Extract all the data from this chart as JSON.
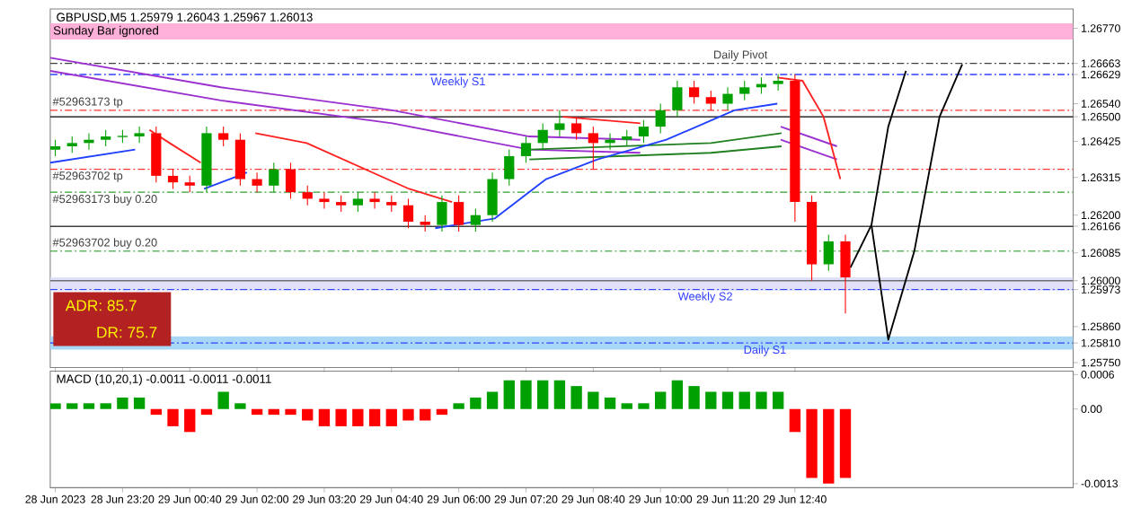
{
  "chart_data": [
    {
      "type": "candlestick",
      "title": "GBPUSD,M5  1.25979 1.26043 1.25967 1.26013",
      "x": [
        "2023-06-28T22:00",
        "2023-06-28T22:20",
        "2023-06-28T22:40",
        "2023-06-28T23:00",
        "2023-06-28T23:20",
        "2023-06-28T23:40",
        "2023-06-29T00:00",
        "2023-06-29T00:20",
        "2023-06-29T00:40",
        "2023-06-29T01:00",
        "2023-06-29T01:20",
        "2023-06-29T01:40",
        "2023-06-29T02:00",
        "2023-06-29T02:20",
        "2023-06-29T02:40",
        "2023-06-29T03:00",
        "2023-06-29T03:20",
        "2023-06-29T03:40",
        "2023-06-29T04:00",
        "2023-06-29T04:20",
        "2023-06-29T04:40",
        "2023-06-29T05:00",
        "2023-06-29T05:20",
        "2023-06-29T05:40",
        "2023-06-29T06:00",
        "2023-06-29T06:20",
        "2023-06-29T06:40",
        "2023-06-29T07:00",
        "2023-06-29T07:20",
        "2023-06-29T07:40",
        "2023-06-29T08:00",
        "2023-06-29T08:20",
        "2023-06-29T08:40",
        "2023-06-29T09:00",
        "2023-06-29T09:20",
        "2023-06-29T09:40",
        "2023-06-29T10:00",
        "2023-06-29T10:20",
        "2023-06-29T10:40",
        "2023-06-29T11:00",
        "2023-06-29T11:20",
        "2023-06-29T11:40",
        "2023-06-29T12:00",
        "2023-06-29T12:20",
        "2023-06-29T12:40",
        "2023-06-29T13:00",
        "2023-06-29T13:20",
        "2023-06-29T13:40"
      ],
      "ohlc": [
        [
          1.264,
          1.2643,
          1.2638,
          1.2641
        ],
        [
          1.2641,
          1.2644,
          1.2639,
          1.2642
        ],
        [
          1.2642,
          1.2645,
          1.264,
          1.2643
        ],
        [
          1.2643,
          1.2646,
          1.2641,
          1.2644
        ],
        [
          1.2644,
          1.2646,
          1.2642,
          1.2644
        ],
        [
          1.2644,
          1.2647,
          1.2642,
          1.2645
        ],
        [
          1.2645,
          1.2647,
          1.263,
          1.2632
        ],
        [
          1.2632,
          1.2634,
          1.2628,
          1.263
        ],
        [
          1.263,
          1.2632,
          1.2627,
          1.2629
        ],
        [
          1.2629,
          1.2647,
          1.2627,
          1.2645
        ],
        [
          1.2645,
          1.2647,
          1.2641,
          1.2643
        ],
        [
          1.2643,
          1.2645,
          1.2629,
          1.2631
        ],
        [
          1.2631,
          1.2633,
          1.2627,
          1.2629
        ],
        [
          1.2629,
          1.2636,
          1.2627,
          1.2634
        ],
        [
          1.2634,
          1.2636,
          1.2625,
          1.2627
        ],
        [
          1.2627,
          1.2629,
          1.2623,
          1.2625
        ],
        [
          1.2625,
          1.2627,
          1.2622,
          1.2624
        ],
        [
          1.2624,
          1.2626,
          1.2621,
          1.2623
        ],
        [
          1.2623,
          1.2627,
          1.2621,
          1.2625
        ],
        [
          1.2625,
          1.2627,
          1.2622,
          1.2624
        ],
        [
          1.2624,
          1.2626,
          1.2621,
          1.2623
        ],
        [
          1.2623,
          1.2625,
          1.2616,
          1.2618
        ],
        [
          1.2618,
          1.262,
          1.2615,
          1.2617
        ],
        [
          1.2617,
          1.2626,
          1.2615,
          1.2624
        ],
        [
          1.2624,
          1.2626,
          1.2615,
          1.2617
        ],
        [
          1.2617,
          1.2622,
          1.2615,
          1.262
        ],
        [
          1.262,
          1.2633,
          1.2618,
          1.2631
        ],
        [
          1.2631,
          1.264,
          1.2629,
          1.2638
        ],
        [
          1.2638,
          1.2644,
          1.2636,
          1.2642
        ],
        [
          1.2642,
          1.2648,
          1.264,
          1.2646
        ],
        [
          1.2646,
          1.2652,
          1.2644,
          1.2648
        ],
        [
          1.2648,
          1.265,
          1.2643,
          1.2645
        ],
        [
          1.2645,
          1.2647,
          1.2634,
          1.2642
        ],
        [
          1.2642,
          1.2645,
          1.264,
          1.2643
        ],
        [
          1.2643,
          1.2646,
          1.2641,
          1.2644
        ],
        [
          1.2644,
          1.2649,
          1.2642,
          1.2647
        ],
        [
          1.2647,
          1.2654,
          1.2645,
          1.2652
        ],
        [
          1.2652,
          1.2661,
          1.265,
          1.2659
        ],
        [
          1.2659,
          1.2661,
          1.2654,
          1.2656
        ],
        [
          1.2656,
          1.2658,
          1.2652,
          1.2654
        ],
        [
          1.2654,
          1.2659,
          1.2652,
          1.2657
        ],
        [
          1.2657,
          1.2661,
          1.2655,
          1.2659
        ],
        [
          1.2659,
          1.2662,
          1.2657,
          1.266
        ],
        [
          1.266,
          1.2663,
          1.2658,
          1.2661
        ],
        [
          1.2661,
          1.2663,
          1.2618,
          1.2624
        ],
        [
          1.2624,
          1.2626,
          1.26,
          1.2605
        ],
        [
          1.2605,
          1.2614,
          1.2603,
          1.2612
        ],
        [
          1.2612,
          1.2614,
          1.259,
          1.2601
        ]
      ],
      "colors": [
        "#00a000",
        "#00a000",
        "#00a000",
        "#00a000",
        "#00a000",
        "#00a000",
        "#ff0000",
        "#ff0000",
        "#ff0000",
        "#00a000",
        "#ff0000",
        "#ff0000",
        "#ff0000",
        "#00a000",
        "#ff0000",
        "#ff0000",
        "#ff0000",
        "#ff0000",
        "#00a000",
        "#ff0000",
        "#ff0000",
        "#ff0000",
        "#ff0000",
        "#00a000",
        "#ff0000",
        "#00a000",
        "#00a000",
        "#00a000",
        "#00a000",
        "#00a000",
        "#00a000",
        "#ff0000",
        "#ff0000",
        "#00a000",
        "#00a000",
        "#00a000",
        "#00a000",
        "#00a000",
        "#ff0000",
        "#ff0000",
        "#00a000",
        "#00a000",
        "#00a000",
        "#00a000",
        "#ff0000",
        "#ff0000",
        "#00a000",
        "#ff0000"
      ],
      "series": [
        {
          "type": "line",
          "color": "#9b30d0",
          "x": [
            "2023-06-28T21:54",
            "2023-06-29T01:17",
            "2023-06-29T04:41",
            "2023-06-29T07:24",
            "2023-06-29T09:36",
            "2023-06-29T11:00",
            "2023-06-29T12:23",
            "2023-06-29T13:30"
          ],
          "values": [
            1.2668,
            1.2659,
            1.2652,
            1.2644,
            1.2643,
            null,
            1.2647,
            1.2641
          ]
        },
        {
          "type": "line",
          "color": "#9b30d0",
          "x": [
            "2023-06-28T21:54",
            "2023-06-29T01:17",
            "2023-06-29T04:41",
            "2023-06-29T07:24",
            "2023-06-29T09:36",
            "2023-06-29T11:00",
            "2023-06-29T12:23",
            "2023-06-29T13:30"
          ],
          "values": [
            1.2664,
            1.2655,
            1.2648,
            1.264,
            1.2639,
            null,
            1.2643,
            1.2637
          ]
        },
        {
          "type": "line",
          "color": "#208020",
          "x": [
            "2023-06-29T07:24",
            "2023-06-29T11:00",
            "2023-06-29T12:24"
          ],
          "values": [
            1.264,
            1.2642,
            1.2645
          ]
        },
        {
          "type": "line",
          "color": "#208020",
          "x": [
            "2023-06-29T07:24",
            "2023-06-29T11:00",
            "2023-06-29T12:24"
          ],
          "values": [
            1.2637,
            1.2639,
            1.2641
          ]
        },
        {
          "type": "line",
          "color": "#ff2020",
          "x": [
            "2023-06-28T23:52",
            "2023-06-29T00:16",
            "2023-06-29T00:53",
            "2023-06-29T01:30",
            "2023-06-29T01:58",
            "2023-06-29T02:59",
            "2023-06-29T04:00",
            "2023-06-29T05:01",
            "2023-06-29T05:52",
            "2023-06-29T07:00",
            "2023-06-29T08:04",
            "2023-06-29T09:36",
            "2023-06-29T11:00",
            "2023-06-29T12:19",
            "2023-06-29T12:49",
            "2023-06-29T13:14",
            "2023-06-29T13:34"
          ],
          "values": [
            1.2646,
            1.2642,
            1.2636,
            null,
            1.2645,
            1.2642,
            1.2635,
            1.2628,
            1.2624,
            null,
            1.265,
            1.2648,
            null,
            1.2662,
            1.2661,
            1.265,
            1.2631
          ]
        },
        {
          "type": "line",
          "color": "#2040ff",
          "x": [
            "2023-06-28T21:54",
            "2023-06-28T23:35",
            "2023-06-29T00:30",
            "2023-06-29T00:57",
            "2023-06-29T01:48",
            "2023-06-29T03:00",
            "2023-06-29T05:32",
            "2023-06-29T06:43",
            "2023-06-29T07:44",
            "2023-06-29T08:45",
            "2023-06-29T10:07",
            "2023-06-29T11:28",
            "2023-06-29T12:19"
          ],
          "values": [
            1.2636,
            1.264,
            null,
            1.2628,
            1.2633,
            null,
            1.2616,
            1.2619,
            1.2631,
            1.2637,
            1.2643,
            1.2652,
            1.2654
          ]
        },
        {
          "type": "line",
          "color": "#000000",
          "x": [
            "2023-06-29T13:46",
            "2023-06-29T14:11",
            "2023-06-29T14:31",
            "2023-06-29T14:52"
          ],
          "values": [
            1.2604,
            1.2617,
            1.2647,
            1.2664
          ]
        },
        {
          "type": "line",
          "color": "#000000",
          "x": [
            "2023-06-29T14:11",
            "2023-06-29T14:31",
            "2023-06-29T15:02",
            "2023-06-29T15:32",
            "2023-06-29T15:59"
          ],
          "values": [
            1.2617,
            1.2582,
            1.2609,
            1.265,
            1.2666
          ]
        }
      ],
      "xlim": [
        "2023-06-28T21:54",
        "2023-06-29T18:11"
      ],
      "ylim": [
        1.25735,
        1.26829
      ],
      "xticks": [
        {
          "value": "2023-06-28T22:00",
          "label": null
        },
        {
          "value": "2023-06-28T23:20",
          "label": null
        },
        {
          "value": "2023-06-29T00:40",
          "label": null
        },
        {
          "value": "2023-06-29T02:00",
          "label": null
        },
        {
          "value": "2023-06-29T03:20",
          "label": null
        },
        {
          "value": "2023-06-29T04:40",
          "label": null
        },
        {
          "value": "2023-06-29T06:00",
          "label": null
        },
        {
          "value": "2023-06-29T07:20",
          "label": null
        },
        {
          "value": "2023-06-29T08:40",
          "label": null
        },
        {
          "value": "2023-06-29T10:00",
          "label": null
        },
        {
          "value": "2023-06-29T11:20",
          "label": null
        },
        {
          "value": "2023-06-29T12:40",
          "label": null
        }
      ],
      "yticks": [
        {
          "value": 1.2677,
          "label": "1.26770"
        },
        {
          "value": 1.26663,
          "label": "1.26663"
        },
        {
          "value": 1.26629,
          "label": "1.26629"
        },
        {
          "value": 1.2654,
          "label": "1.26540"
        },
        {
          "value": 1.265,
          "label": "1.26500"
        },
        {
          "value": 1.26425,
          "label": "1.26425"
        },
        {
          "value": 1.26315,
          "label": "1.26315"
        },
        {
          "value": 1.262,
          "label": "1.26200"
        },
        {
          "value": 1.26166,
          "label": "1.26166"
        },
        {
          "value": 1.26085,
          "label": "1.26085"
        },
        {
          "value": 1.26,
          "label": "1.26000"
        },
        {
          "value": 1.25973,
          "label": "1.25973"
        },
        {
          "value": 1.2586,
          "label": "1.25860"
        },
        {
          "value": 1.2581,
          "label": "1.25810"
        },
        {
          "value": 1.2575,
          "label": "1.25750"
        }
      ],
      "tick_labels": "y",
      "ref_lines": [
        {
          "axis": "y",
          "value": 1.26663,
          "label": "Daily Pivot",
          "color": "#404040",
          "line_style": "dashed"
        },
        {
          "axis": "y",
          "value": 1.26629,
          "label": "Weekly S1",
          "color": "#3040ff",
          "line_style": "dashed"
        },
        {
          "axis": "y",
          "value": 1.2652,
          "label": "#52963173 tp",
          "color": "#ff3030",
          "line_style": "dashed"
        },
        {
          "axis": "y",
          "value": 1.265,
          "label": null,
          "color": "#000000",
          "line_style": "solid"
        },
        {
          "axis": "y",
          "value": 1.2634,
          "label": "#52963702 tp",
          "color": "#ff3030",
          "line_style": "dashed"
        },
        {
          "axis": "y",
          "value": 1.2627,
          "label": "#52963173 buy 0.20",
          "color": "#30a030",
          "line_style": "dashed"
        },
        {
          "axis": "y",
          "value": 1.26166,
          "label": null,
          "color": "#000000",
          "line_style": "solid"
        },
        {
          "axis": "y",
          "value": 1.2609,
          "label": "#52963702 buy 0.20",
          "color": "#30a030",
          "line_style": "dashed"
        },
        {
          "axis": "y",
          "value": 1.26,
          "label": null,
          "color": "#707070",
          "line_style": "solid"
        },
        {
          "axis": "y",
          "value": 1.25973,
          "label": "Weekly S2",
          "color": "#3040ff",
          "line_style": "dashed"
        },
        {
          "axis": "y",
          "value": 1.2581,
          "label": "Daily S1",
          "color": "#3040ff",
          "line_style": "dashed"
        }
      ],
      "bands": [
        {
          "axis": "y",
          "from": 1.26736,
          "to": 1.26785,
          "label": "Sunday Bar ignored",
          "color": "#ffb0d8"
        },
        {
          "axis": "y",
          "from": 1.2597,
          "to": 1.2601,
          "label": null,
          "color": "#e0e0f8"
        },
        {
          "axis": "y",
          "from": 1.2579,
          "to": 1.2583,
          "label": null,
          "color": "#a8d8f8"
        }
      ],
      "annotations": [
        "ADR: 85.7",
        "DR: 75.7"
      ]
    },
    {
      "type": "bar",
      "title": "MACD (10,20,1) -0.0011 -0.0011 -0.0011",
      "x": [
        "2023-06-28T22:00",
        "2023-06-28T22:20",
        "2023-06-28T22:40",
        "2023-06-28T23:00",
        "2023-06-28T23:20",
        "2023-06-28T23:40",
        "2023-06-29T00:00",
        "2023-06-29T00:20",
        "2023-06-29T00:40",
        "2023-06-29T01:00",
        "2023-06-29T01:20",
        "2023-06-29T01:40",
        "2023-06-29T02:00",
        "2023-06-29T02:20",
        "2023-06-29T02:40",
        "2023-06-29T03:00",
        "2023-06-29T03:20",
        "2023-06-29T03:40",
        "2023-06-29T04:00",
        "2023-06-29T04:20",
        "2023-06-29T04:40",
        "2023-06-29T05:00",
        "2023-06-29T05:20",
        "2023-06-29T05:40",
        "2023-06-29T06:00",
        "2023-06-29T06:20",
        "2023-06-29T06:40",
        "2023-06-29T07:00",
        "2023-06-29T07:20",
        "2023-06-29T07:40",
        "2023-06-29T08:00",
        "2023-06-29T08:20",
        "2023-06-29T08:40",
        "2023-06-29T09:00",
        "2023-06-29T09:20",
        "2023-06-29T09:40",
        "2023-06-29T10:00",
        "2023-06-29T10:20",
        "2023-06-29T10:40",
        "2023-06-29T11:00",
        "2023-06-29T11:20",
        "2023-06-29T11:40",
        "2023-06-29T12:00",
        "2023-06-29T12:20",
        "2023-06-29T12:40",
        "2023-06-29T13:00",
        "2023-06-29T13:20",
        "2023-06-29T13:40"
      ],
      "values": [
        0.0001,
        0.0001,
        0.0001,
        0.0001,
        0.0002,
        0.0002,
        -0.0001,
        -0.0003,
        -0.0004,
        -0.0001,
        0.0003,
        0.0001,
        -0.0001,
        -0.0001,
        -0.0001,
        -0.0002,
        -0.0003,
        -0.0003,
        -0.0003,
        -0.0003,
        -0.0003,
        -0.0002,
        -0.0002,
        -0.0001,
        0.0001,
        0.0002,
        0.0003,
        0.0005,
        0.0005,
        0.0005,
        0.0005,
        0.0004,
        0.0003,
        0.0002,
        0.0001,
        0.0001,
        0.0003,
        0.0005,
        0.0004,
        0.0003,
        0.0003,
        0.0003,
        0.0003,
        0.0003,
        -0.0004,
        -0.0012,
        -0.0013,
        -0.0012
      ],
      "colors": [
        "#00a000",
        "#00a000",
        "#00a000",
        "#00a000",
        "#00a000",
        "#00a000",
        "#ff0000",
        "#ff0000",
        "#ff0000",
        "#ff0000",
        "#00a000",
        "#00a000",
        "#ff0000",
        "#ff0000",
        "#ff0000",
        "#ff0000",
        "#ff0000",
        "#ff0000",
        "#ff0000",
        "#ff0000",
        "#ff0000",
        "#ff0000",
        "#ff0000",
        "#ff0000",
        "#00a000",
        "#00a000",
        "#00a000",
        "#00a000",
        "#00a000",
        "#00a000",
        "#00a000",
        "#00a000",
        "#00a000",
        "#00a000",
        "#00a000",
        "#00a000",
        "#00a000",
        "#00a000",
        "#00a000",
        "#00a000",
        "#00a000",
        "#00a000",
        "#00a000",
        "#00a000",
        "#ff0000",
        "#ff0000",
        "#ff0000",
        "#ff0000"
      ],
      "xlim": [
        "2023-06-28T21:54",
        "2023-06-29T18:11"
      ],
      "ylim": [
        -0.00137,
        0.00066
      ],
      "xticks": [
        {
          "value": "2023-06-28T22:00",
          "label": "28 Jun 2023"
        },
        {
          "value": "2023-06-28T23:20",
          "label": "28 Jun 23:20"
        },
        {
          "value": "2023-06-29T00:40",
          "label": "29 Jun 00:40"
        },
        {
          "value": "2023-06-29T02:00",
          "label": "29 Jun 02:00"
        },
        {
          "value": "2023-06-29T03:20",
          "label": "29 Jun 03:20"
        },
        {
          "value": "2023-06-29T04:40",
          "label": "29 Jun 04:40"
        },
        {
          "value": "2023-06-29T06:00",
          "label": "29 Jun 06:00"
        },
        {
          "value": "2023-06-29T07:20",
          "label": "29 Jun 07:20"
        },
        {
          "value": "2023-06-29T08:40",
          "label": "29 Jun 08:40"
        },
        {
          "value": "2023-06-29T10:00",
          "label": "29 Jun 10:00"
        },
        {
          "value": "2023-06-29T11:20",
          "label": "29 Jun 11:20"
        },
        {
          "value": "2023-06-29T12:40",
          "label": "29 Jun 12:40"
        }
      ],
      "yticks": [
        0.0006,
        {
          "value": 0,
          "label": "0.00"
        },
        -0.0013
      ]
    }
  ]
}
